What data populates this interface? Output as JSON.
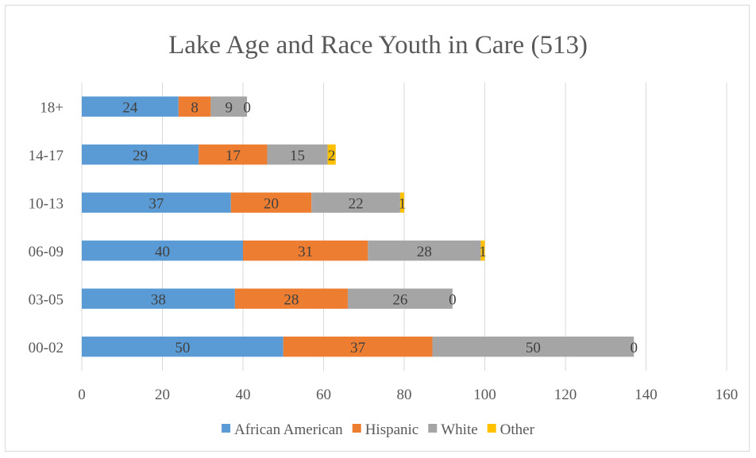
{
  "chart_data": {
    "type": "bar",
    "orientation": "horizontal",
    "stacked": true,
    "title": "Lake Age and Race Youth in Care (513)",
    "categories": [
      "00-02",
      "03-05",
      "06-09",
      "10-13",
      "14-17",
      "18+"
    ],
    "series": [
      {
        "name": "African American",
        "color": "#5b9bd5",
        "values": [
          50,
          38,
          40,
          37,
          29,
          24
        ]
      },
      {
        "name": "Hispanic",
        "color": "#ed7d31",
        "values": [
          37,
          28,
          31,
          20,
          17,
          8
        ]
      },
      {
        "name": "White",
        "color": "#a5a5a5",
        "values": [
          50,
          26,
          28,
          22,
          15,
          9
        ]
      },
      {
        "name": "Other",
        "color": "#ffc000",
        "values": [
          0,
          0,
          1,
          1,
          2,
          0
        ]
      }
    ],
    "xlim": [
      0,
      160
    ],
    "xticks": [
      0,
      20,
      40,
      60,
      80,
      100,
      120,
      140,
      160
    ],
    "grid": true,
    "legend": "bottom"
  }
}
